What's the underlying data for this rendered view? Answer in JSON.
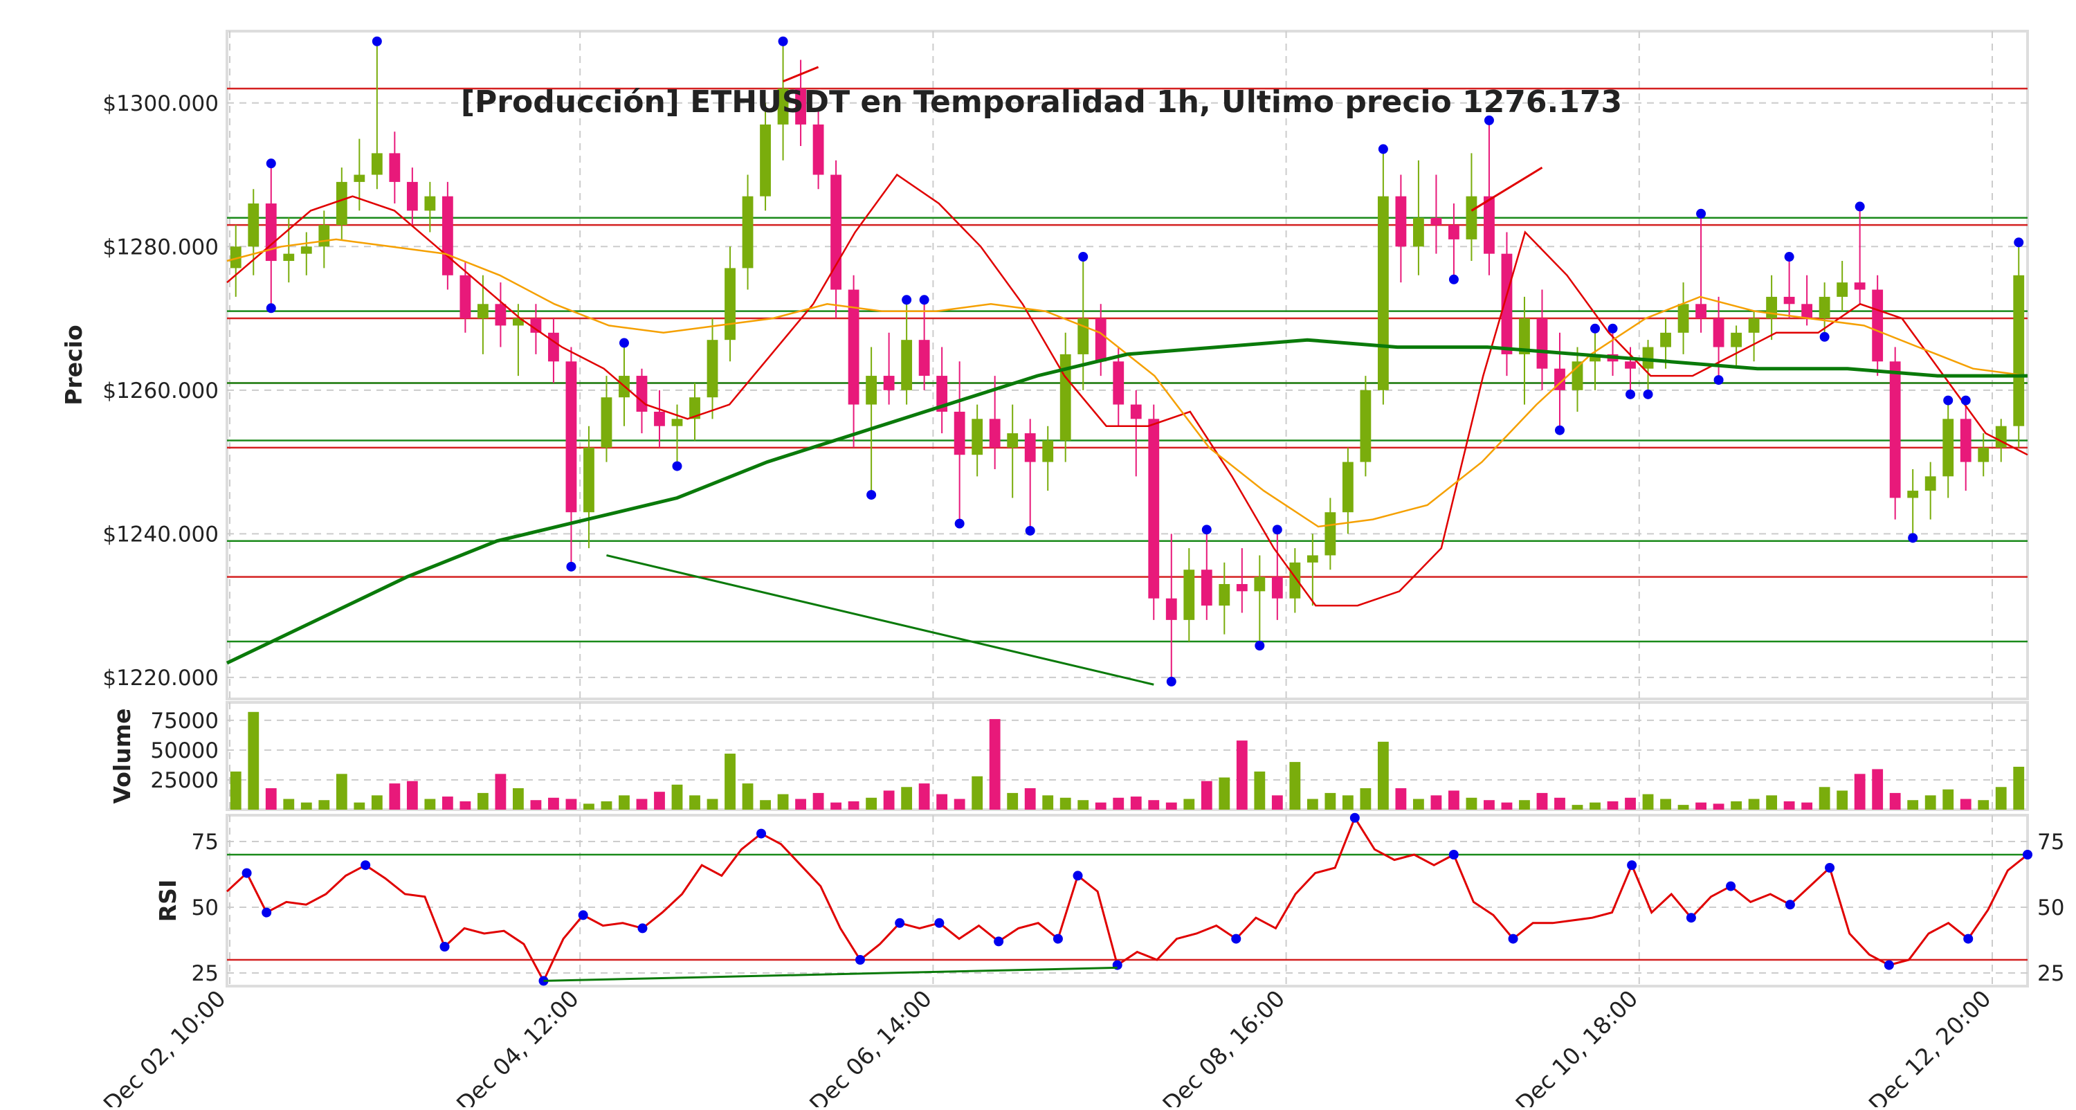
{
  "chart_data": {
    "type": "candlestick",
    "title": "[Producción] ETHUSDT en Temporalidad 1h, Ultimo precio 1276.173",
    "price_panel": {
      "ylabel": "Precio",
      "ylim": [
        1217,
        1310
      ],
      "yticks": [
        1220,
        1240,
        1260,
        1280,
        1300
      ],
      "ytick_labels": [
        "$1220.000",
        "$1240.000",
        "$1260.000",
        "$1280.000",
        "$1300.000"
      ],
      "candles": [
        [
          1277,
          1283,
          1273,
          1280
        ],
        [
          1280,
          1288,
          1276,
          1286
        ],
        [
          1286,
          1291,
          1272,
          1278
        ],
        [
          1278,
          1284,
          1275,
          1279
        ],
        [
          1279,
          1282,
          1276,
          1280
        ],
        [
          1280,
          1285,
          1277,
          1283
        ],
        [
          1283,
          1291,
          1281,
          1289
        ],
        [
          1289,
          1295,
          1285,
          1290
        ],
        [
          1290,
          1308,
          1288,
          1293
        ],
        [
          1293,
          1296,
          1286,
          1289
        ],
        [
          1289,
          1291,
          1283,
          1285
        ],
        [
          1285,
          1289,
          1282,
          1287
        ],
        [
          1287,
          1289,
          1274,
          1276
        ],
        [
          1276,
          1278,
          1268,
          1270
        ],
        [
          1270,
          1276,
          1265,
          1272
        ],
        [
          1272,
          1275,
          1266,
          1269
        ],
        [
          1269,
          1272,
          1262,
          1270
        ],
        [
          1270,
          1272,
          1265,
          1268
        ],
        [
          1268,
          1270,
          1261,
          1264
        ],
        [
          1264,
          1266,
          1236,
          1243
        ],
        [
          1243,
          1255,
          1238,
          1252
        ],
        [
          1252,
          1262,
          1250,
          1259
        ],
        [
          1259,
          1266,
          1255,
          1262
        ],
        [
          1262,
          1263,
          1254,
          1257
        ],
        [
          1257,
          1260,
          1252,
          1255
        ],
        [
          1255,
          1258,
          1250,
          1256
        ],
        [
          1256,
          1261,
          1253,
          1259
        ],
        [
          1259,
          1270,
          1256,
          1267
        ],
        [
          1267,
          1280,
          1264,
          1277
        ],
        [
          1277,
          1290,
          1274,
          1287
        ],
        [
          1287,
          1300,
          1285,
          1297
        ],
        [
          1297,
          1308,
          1292,
          1302
        ],
        [
          1302,
          1306,
          1294,
          1297
        ],
        [
          1297,
          1299,
          1288,
          1290
        ],
        [
          1290,
          1292,
          1270,
          1274
        ],
        [
          1274,
          1276,
          1252,
          1258
        ],
        [
          1258,
          1266,
          1246,
          1262
        ],
        [
          1262,
          1268,
          1258,
          1260
        ],
        [
          1260,
          1272,
          1258,
          1267
        ],
        [
          1267,
          1272,
          1260,
          1262
        ],
        [
          1262,
          1266,
          1254,
          1257
        ],
        [
          1257,
          1264,
          1242,
          1251
        ],
        [
          1251,
          1258,
          1248,
          1256
        ],
        [
          1256,
          1262,
          1249,
          1252
        ],
        [
          1252,
          1258,
          1245,
          1254
        ],
        [
          1254,
          1256,
          1241,
          1250
        ],
        [
          1250,
          1255,
          1246,
          1253
        ],
        [
          1253,
          1268,
          1250,
          1265
        ],
        [
          1265,
          1278,
          1260,
          1270
        ],
        [
          1270,
          1272,
          1262,
          1264
        ],
        [
          1264,
          1266,
          1255,
          1258
        ],
        [
          1258,
          1260,
          1248,
          1256
        ],
        [
          1256,
          1258,
          1228,
          1231
        ],
        [
          1231,
          1240,
          1220,
          1228
        ],
        [
          1228,
          1238,
          1225,
          1235
        ],
        [
          1235,
          1240,
          1228,
          1230
        ],
        [
          1230,
          1236,
          1226,
          1233
        ],
        [
          1233,
          1238,
          1229,
          1232
        ],
        [
          1232,
          1237,
          1225,
          1234
        ],
        [
          1234,
          1240,
          1228,
          1231
        ],
        [
          1231,
          1238,
          1229,
          1236
        ],
        [
          1236,
          1240,
          1230,
          1237
        ],
        [
          1237,
          1245,
          1235,
          1243
        ],
        [
          1243,
          1252,
          1240,
          1250
        ],
        [
          1250,
          1262,
          1248,
          1260
        ],
        [
          1260,
          1293,
          1258,
          1287
        ],
        [
          1287,
          1290,
          1275,
          1280
        ],
        [
          1280,
          1292,
          1276,
          1284
        ],
        [
          1284,
          1290,
          1279,
          1283
        ],
        [
          1283,
          1286,
          1276,
          1281
        ],
        [
          1281,
          1293,
          1278,
          1287
        ],
        [
          1287,
          1297,
          1276,
          1279
        ],
        [
          1279,
          1282,
          1262,
          1265
        ],
        [
          1265,
          1273,
          1258,
          1270
        ],
        [
          1270,
          1274,
          1260,
          1263
        ],
        [
          1263,
          1268,
          1255,
          1260
        ],
        [
          1260,
          1266,
          1257,
          1264
        ],
        [
          1264,
          1268,
          1260,
          1265
        ],
        [
          1265,
          1268,
          1262,
          1264
        ],
        [
          1264,
          1266,
          1260,
          1263
        ],
        [
          1263,
          1267,
          1260,
          1266
        ],
        [
          1266,
          1270,
          1263,
          1268
        ],
        [
          1268,
          1275,
          1265,
          1272
        ],
        [
          1272,
          1284,
          1268,
          1270
        ],
        [
          1270,
          1273,
          1262,
          1266
        ],
        [
          1266,
          1269,
          1263,
          1268
        ],
        [
          1268,
          1271,
          1264,
          1270
        ],
        [
          1270,
          1276,
          1267,
          1273
        ],
        [
          1273,
          1278,
          1270,
          1272
        ],
        [
          1272,
          1276,
          1269,
          1270
        ],
        [
          1270,
          1275,
          1268,
          1273
        ],
        [
          1273,
          1278,
          1271,
          1275
        ],
        [
          1275,
          1285,
          1272,
          1274
        ],
        [
          1274,
          1276,
          1262,
          1264
        ],
        [
          1264,
          1266,
          1242,
          1245
        ],
        [
          1245,
          1249,
          1240,
          1246
        ],
        [
          1246,
          1250,
          1242,
          1248
        ],
        [
          1248,
          1258,
          1245,
          1256
        ],
        [
          1256,
          1258,
          1246,
          1250
        ],
        [
          1250,
          1254,
          1248,
          1252
        ],
        [
          1252,
          1256,
          1250,
          1255
        ],
        [
          1255,
          1280,
          1252,
          1276
        ]
      ],
      "moving_averages": [
        {
          "color": "#e00000",
          "values": [
            1275,
            1280,
            1285,
            1287,
            1285,
            1280,
            1275,
            1270,
            1266,
            1263,
            1258,
            1256,
            1258,
            1265,
            1272,
            1282,
            1290,
            1286,
            1280,
            1272,
            1262,
            1255,
            1255,
            1257,
            1248,
            1238,
            1230,
            1230,
            1232,
            1238,
            1262,
            1282,
            1276,
            1268,
            1262,
            1262,
            1265,
            1268,
            1268,
            1272,
            1270,
            1262,
            1254,
            1251
          ]
        },
        {
          "color": "#f5a000",
          "values": [
            1278,
            1280,
            1281,
            1280,
            1279,
            1276,
            1272,
            1269,
            1268,
            1269,
            1270,
            1272,
            1271,
            1271,
            1272,
            1271,
            1268,
            1262,
            1252,
            1246,
            1241,
            1242,
            1244,
            1250,
            1258,
            1265,
            1270,
            1273,
            1271,
            1270,
            1269,
            1266,
            1263,
            1262
          ]
        },
        {
          "color": "#0a7a0a",
          "values": [
            1222,
            1228,
            1234,
            1239,
            1242,
            1245,
            1250,
            1254,
            1258,
            1262,
            1265,
            1266,
            1267,
            1266,
            1266,
            1265,
            1264,
            1263,
            1263,
            1262,
            1262
          ]
        }
      ],
      "horizontal_levels": {
        "red": [
          1302,
          1283,
          1270,
          1261,
          1252,
          1234
        ],
        "green": [
          1284,
          1271,
          1261,
          1253,
          1239,
          1225
        ]
      },
      "divergence_lines": [
        {
          "color": "#0a7a0a",
          "from": [
            21,
            1237
          ],
          "to": [
            52,
            1219
          ]
        },
        {
          "color": "#e00000",
          "from": [
            31,
            1303
          ],
          "to": [
            33,
            1305
          ]
        },
        {
          "color": "#e00000",
          "from": [
            70,
            1285
          ],
          "to": [
            74,
            1291
          ]
        }
      ]
    },
    "volume_panel": {
      "ylabel": "Volume",
      "ylim": [
        0,
        90000
      ],
      "yticks": [
        25000,
        50000,
        75000
      ],
      "ytick_labels": [
        "25000",
        "50000",
        "75000"
      ],
      "values": [
        32000,
        82000,
        18000,
        9000,
        6000,
        8000,
        30000,
        6000,
        12000,
        22000,
        24000,
        9000,
        11000,
        7000,
        14000,
        30000,
        18000,
        8000,
        10000,
        9000,
        5000,
        7000,
        12000,
        9000,
        15000,
        21000,
        12000,
        9000,
        47000,
        22000,
        8000,
        13000,
        9000,
        14000,
        6000,
        7000,
        10000,
        16000,
        19000,
        22000,
        13000,
        9000,
        28000,
        76000,
        14000,
        18000,
        12000,
        10000,
        8000,
        6000,
        10000,
        11000,
        8000,
        6000,
        9000,
        24000,
        27000,
        58000,
        32000,
        12000,
        40000,
        9000,
        14000,
        12000,
        18000,
        57000,
        18000,
        9000,
        12000,
        16000,
        10000,
        8000,
        6000,
        8000,
        14000,
        10000,
        4000,
        6000,
        7000,
        10000,
        13000,
        9000,
        4000,
        6000,
        5000,
        7000,
        9000,
        12000,
        7000,
        6000,
        19000,
        16000,
        30000,
        34000,
        14000,
        8000,
        12000,
        17000,
        9000,
        8000,
        19000,
        36000
      ]
    },
    "rsi_panel": {
      "ylabel": "RSI",
      "ylim": [
        20,
        85
      ],
      "yticks": [
        25,
        50,
        75
      ],
      "ytick_labels": [
        "25",
        "50",
        "75"
      ],
      "overbought": 70,
      "oversold": 30,
      "values": [
        56,
        63,
        48,
        52,
        51,
        55,
        62,
        66,
        61,
        55,
        54,
        35,
        42,
        40,
        41,
        36,
        22,
        38,
        47,
        43,
        44,
        42,
        48,
        55,
        66,
        62,
        72,
        78,
        74,
        66,
        58,
        42,
        30,
        36,
        44,
        42,
        44,
        38,
        43,
        37,
        42,
        44,
        38,
        62,
        56,
        28,
        33,
        30,
        38,
        40,
        43,
        38,
        46,
        42,
        55,
        63,
        65,
        84,
        72,
        68,
        70,
        66,
        70,
        52,
        47,
        38,
        44,
        44,
        45,
        46,
        48,
        66,
        48,
        55,
        46,
        54,
        58,
        52,
        55,
        51,
        58,
        65,
        40,
        32,
        28,
        30,
        40,
        44,
        38,
        49,
        64,
        70
      ],
      "divergence_lines": [
        {
          "color": "#0a7a0a",
          "from": [
            16,
            22
          ],
          "to": [
            45,
            27
          ]
        }
      ]
    },
    "x_ticks": {
      "labels": [
        "Dec 02, 10:00",
        "Dec 04, 12:00",
        "Dec 06, 14:00",
        "Dec 08, 16:00",
        "Dec 10, 18:00",
        "Dec 12, 20:00"
      ],
      "candle_index": [
        0,
        20,
        40,
        60,
        80,
        100
      ]
    },
    "colors": {
      "up": "#7aad0c",
      "down": "#e8197a",
      "pivot_marker": "#0000ee",
      "grid": "#cccccc"
    },
    "grid": true
  }
}
